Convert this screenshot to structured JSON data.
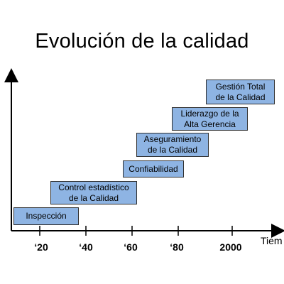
{
  "title": "Evolución de la calidad",
  "x_axis_label": "Tiem",
  "ticks": [
    "‘20",
    "‘40",
    "‘60",
    "‘80",
    "2000"
  ],
  "stages": [
    {
      "label": "Inspección"
    },
    {
      "label": "Control estadístico\nde la Calidad"
    },
    {
      "label": "Confiabilidad"
    },
    {
      "label": "Aseguramiento\nde la Calidad"
    },
    {
      "label": "Liderazgo de la\nAlta Gerencia"
    },
    {
      "label": "Gestión Total\nde la Calidad"
    }
  ],
  "colors": {
    "stage_fill": "#8eb4e3",
    "stage_border": "#2f2f2f",
    "axis": "#000000"
  }
}
